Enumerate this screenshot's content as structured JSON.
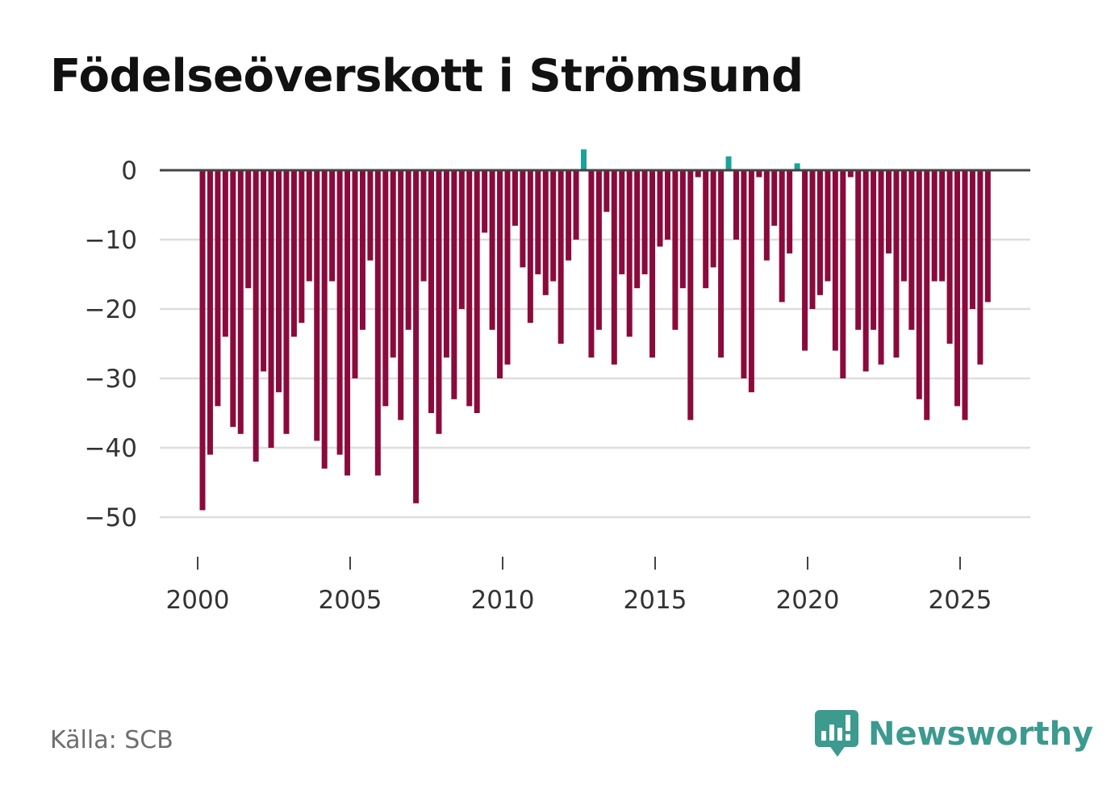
{
  "chart_data": {
    "type": "bar",
    "title": "Födelseöverskott i Strömsund",
    "xlabel": "",
    "ylabel": "",
    "x_start": 2000,
    "x_step_per_bar": 0.25,
    "x_ticks": [
      2000,
      2005,
      2010,
      2015,
      2020,
      2025
    ],
    "x_tick_labels": [
      "2000",
      "2005",
      "2010",
      "2015",
      "2020",
      "2025"
    ],
    "y_ticks": [
      0,
      -10,
      -20,
      -30,
      -40,
      -50
    ],
    "y_tick_labels": [
      "0",
      "−10",
      "−20",
      "−30",
      "−40",
      "−50"
    ],
    "ylim": [
      -53,
      4
    ],
    "values": [
      -49,
      -41,
      -34,
      -24,
      -37,
      -38,
      -17,
      -42,
      -29,
      -40,
      -32,
      -38,
      -24,
      -22,
      -16,
      -39,
      -43,
      -16,
      -41,
      -44,
      -30,
      -23,
      -13,
      -44,
      -34,
      -27,
      -36,
      -23,
      -48,
      -16,
      -35,
      -38,
      -27,
      -33,
      -20,
      -34,
      -35,
      -9,
      -23,
      -30,
      -28,
      -8,
      -14,
      -22,
      -15,
      -18,
      -16,
      -25,
      -13,
      -10,
      3,
      -27,
      -23,
      -6,
      -28,
      -15,
      -24,
      -17,
      -15,
      -27,
      -11,
      -10,
      -23,
      -17,
      -36,
      -1,
      -17,
      -14,
      -27,
      2,
      -10,
      -30,
      -32,
      -1,
      -13,
      -8,
      -19,
      -12,
      1,
      -26,
      -20,
      -18,
      -16,
      -26,
      -30,
      -1,
      -23,
      -29,
      -23,
      -28,
      -12,
      -27,
      -16,
      -23,
      -33,
      -36,
      -16,
      -16,
      -25,
      -34,
      -36,
      -20,
      -28,
      -19
    ],
    "colors": {
      "negative": "#8b0a3c",
      "positive": "#1aa39a",
      "zero_line": "#444444",
      "grid": "#dddddd"
    }
  },
  "source": "Källa: SCB",
  "brand": {
    "name": "Newsworthy",
    "color": "#3c9a8f"
  }
}
